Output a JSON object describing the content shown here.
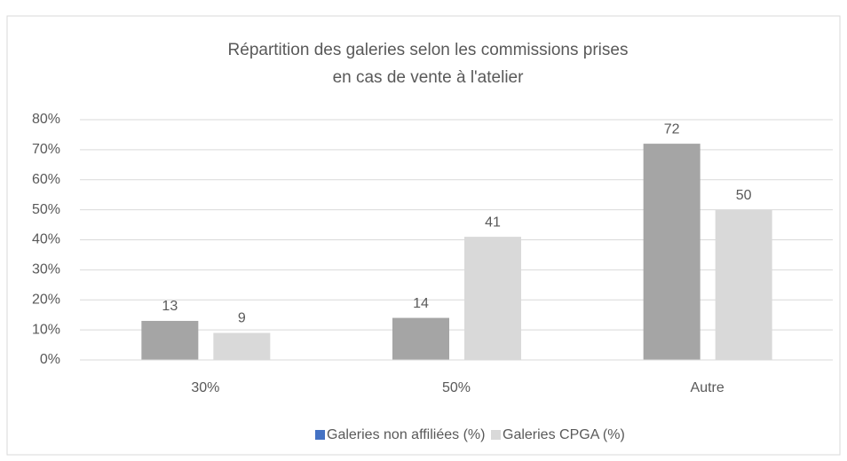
{
  "chart_data": {
    "type": "bar",
    "title": [
      "Répartition des galeries selon les commissions prises",
      "en cas de vente à l'atelier"
    ],
    "categories": [
      "30%",
      "50%",
      "Autre"
    ],
    "series": [
      {
        "name": "Galeries non affiliées (%)",
        "color": "#a5a5a5",
        "legend_color": "#4472c4",
        "values": [
          13,
          14,
          72
        ]
      },
      {
        "name": "Galeries CPGA (%)",
        "color": "#d9d9d9",
        "legend_color": "#d9d9d9",
        "values": [
          9,
          41,
          50
        ]
      }
    ],
    "ylim": [
      0,
      80
    ],
    "yticks": [
      {
        "value": 0,
        "label": "0%"
      },
      {
        "value": 10,
        "label": "10%"
      },
      {
        "value": 20,
        "label": "20%"
      },
      {
        "value": 30,
        "label": "30%"
      },
      {
        "value": 40,
        "label": "40%"
      },
      {
        "value": 50,
        "label": "50%"
      },
      {
        "value": 60,
        "label": "60%"
      },
      {
        "value": 70,
        "label": "70%"
      },
      {
        "value": 80,
        "label": "80%"
      }
    ],
    "grid": true,
    "legend": "bottom"
  }
}
